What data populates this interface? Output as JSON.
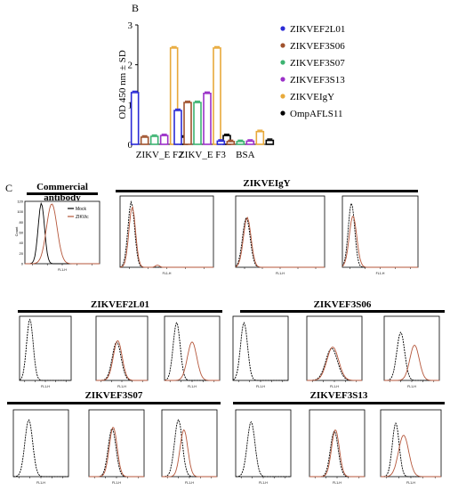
{
  "panel_b": {
    "letter": "B",
    "chart_data": {
      "type": "bar",
      "ylabel": "OD 450 nm ± SD",
      "ylim": [
        0,
        3
      ],
      "yticks": [
        "0",
        "1",
        "2",
        "3"
      ],
      "categories": [
        "ZIKV_E F2",
        "ZIKV_E F3",
        "BSA"
      ],
      "series": [
        {
          "name": "ZIKVEF2L01",
          "color": "#2b2bd6",
          "values": [
            1.3,
            0.85,
            0.08
          ]
        },
        {
          "name": "ZIKVEF3S06",
          "color": "#a0522d",
          "values": [
            0.18,
            1.05,
            0.07
          ]
        },
        {
          "name": "ZIKVEF3S07",
          "color": "#3cb371",
          "values": [
            0.2,
            1.05,
            0.07
          ]
        },
        {
          "name": "ZIKVEF3S13",
          "color": "#9b30c8",
          "values": [
            0.22,
            1.28,
            0.08
          ]
        },
        {
          "name": "ZIKVEIgY",
          "color": "#e8a93a",
          "values": [
            2.42,
            2.42,
            0.32
          ]
        },
        {
          "name": "OmpAFLS11",
          "color": "#000000",
          "values": [
            0.18,
            0.22,
            0.1
          ]
        }
      ],
      "legend_position": "right"
    }
  },
  "panel_c": {
    "letter": "C",
    "commercial_title": "Commercial antibody",
    "igy_title": "ZIKVEIgY",
    "legend": {
      "mock": "Mock",
      "zikv": "ZIKVic"
    },
    "y_axis_label": "Count",
    "x_axis_label": "FL1-H",
    "yticks_first": [
      "0",
      "20",
      "40",
      "60",
      "80",
      "100",
      "120"
    ],
    "groups": [
      {
        "title": "ZIKVEF2L01"
      },
      {
        "title": "ZIKVEF3S06"
      },
      {
        "title": "ZIKVEF3S07"
      },
      {
        "title": "ZIKVEF3S13"
      }
    ],
    "colors": {
      "mock": "#000000",
      "zikv": "#b5563a"
    }
  }
}
